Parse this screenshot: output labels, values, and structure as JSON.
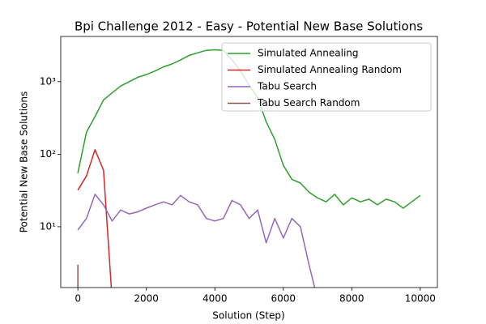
{
  "chart_data": {
    "type": "line",
    "title": "Bpi Challenge 2012 - Easy - Potential New Base Solutions",
    "x_label": "Solution (Step)",
    "y_label": "Potential New Base Solutions",
    "log_y": true,
    "legend": "upper right",
    "x": [
      0,
      250,
      500,
      750,
      1000,
      1250,
      1500,
      1750,
      2000,
      2250,
      2500,
      2750,
      3000,
      3250,
      3500,
      3750,
      4000,
      4250,
      4500,
      4750,
      5000,
      5250,
      5500,
      5750,
      6000,
      6250,
      6500,
      6750,
      7000,
      7250,
      7500,
      7750,
      8000,
      8250,
      8500,
      8750,
      9000,
      9250,
      9500,
      9750,
      10000
    ],
    "xlim": [
      -500,
      10500
    ],
    "xticks": [
      0,
      2000,
      4000,
      6000,
      8000,
      10000
    ],
    "ylim": [
      1.45,
      4200
    ],
    "yticks": [
      {
        "value": 10,
        "label": "10¹"
      },
      {
        "value": 100,
        "label": "10²"
      },
      {
        "value": 1000,
        "label": "10³"
      }
    ],
    "series": [
      {
        "name": "Simulated Annealing",
        "color": "#2ca02c",
        "values": [
          55,
          200,
          330,
          560,
          700,
          870,
          1000,
          1150,
          1250,
          1400,
          1600,
          1750,
          2000,
          2300,
          2500,
          2700,
          2750,
          2700,
          2000,
          1400,
          900,
          600,
          280,
          160,
          70,
          45,
          40,
          30,
          25,
          22,
          28,
          20,
          25,
          22,
          24,
          20,
          24,
          22,
          18,
          22,
          27
        ]
      },
      {
        "name": "Simulated Annealing Random",
        "color": "#d62728",
        "values": [
          32,
          50,
          115,
          60,
          1,
          null,
          null,
          null,
          null,
          null,
          null,
          null,
          null,
          null,
          null,
          null,
          null,
          null,
          null,
          null,
          null,
          null,
          null,
          null,
          null,
          null,
          null,
          null,
          null,
          null,
          null,
          null,
          null,
          null,
          null,
          null,
          null,
          null,
          null,
          null,
          null
        ]
      },
      {
        "name": "Tabu Search",
        "color": "#9467bd",
        "values": [
          9,
          13,
          28,
          20,
          12,
          17,
          15,
          16,
          18,
          20,
          22,
          20,
          27,
          22,
          20,
          13,
          12,
          13,
          23,
          20,
          13,
          17,
          6,
          13,
          7,
          13,
          10,
          3,
          1,
          null,
          null,
          null,
          null,
          null,
          null,
          null,
          null,
          null,
          null,
          null,
          null
        ]
      },
      {
        "name": "Tabu Search Random",
        "color": "#8c564b",
        "values": [
          3,
          null,
          null,
          null,
          null,
          null,
          null,
          null,
          null,
          null,
          null,
          null,
          null,
          null,
          null,
          null,
          null,
          null,
          null,
          null,
          null,
          null,
          null,
          null,
          null,
          null,
          null,
          null,
          null,
          null,
          null,
          null,
          null,
          null,
          null,
          null,
          null,
          null,
          null,
          null,
          null
        ]
      }
    ]
  }
}
